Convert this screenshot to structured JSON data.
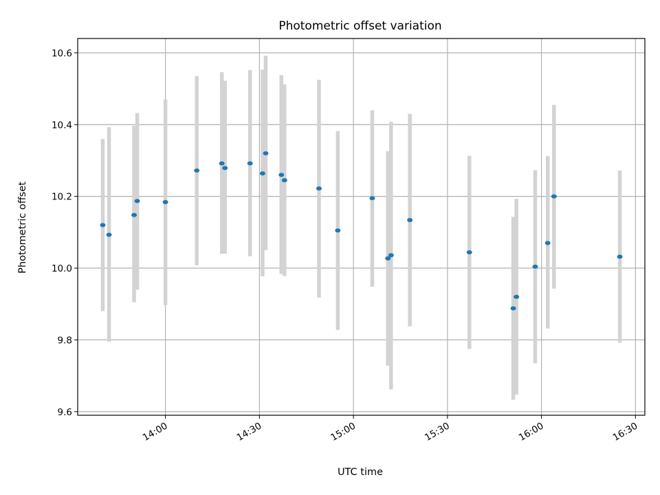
{
  "chart_data": {
    "type": "scatter",
    "title": "Photometric offset variation",
    "xlabel": "UTC time",
    "ylabel": "Photometric offset",
    "xlim": [
      "13:32",
      "16:33"
    ],
    "ylim": [
      9.59,
      10.64
    ],
    "grid": true,
    "x_ticks": [
      "14:00",
      "14:30",
      "15:00",
      "15:30",
      "16:00",
      "16:30"
    ],
    "y_ticks": [
      9.6,
      9.8,
      10.0,
      10.2,
      10.4,
      10.6
    ],
    "y_tick_labels": [
      "9.6",
      "9.8",
      "10.0",
      "10.2",
      "10.4",
      "10.6"
    ],
    "series": [
      {
        "marker_color": "#1f77b4",
        "errorbar_color": "#d3d3d3",
        "points": [
          {
            "x": "13:40",
            "y": 10.12,
            "ylow": 9.88,
            "yhigh": 10.36
          },
          {
            "x": "13:42",
            "y": 10.093,
            "ylow": 9.795,
            "yhigh": 10.393
          },
          {
            "x": "13:50",
            "y": 10.148,
            "ylow": 9.905,
            "yhigh": 10.397
          },
          {
            "x": "13:51",
            "y": 10.187,
            "ylow": 9.94,
            "yhigh": 10.432
          },
          {
            "x": "14:00",
            "y": 10.184,
            "ylow": 9.897,
            "yhigh": 10.47
          },
          {
            "x": "14:10",
            "y": 10.272,
            "ylow": 10.008,
            "yhigh": 10.535
          },
          {
            "x": "14:18",
            "y": 10.292,
            "ylow": 10.04,
            "yhigh": 10.546
          },
          {
            "x": "14:19",
            "y": 10.279,
            "ylow": 10.04,
            "yhigh": 10.522
          },
          {
            "x": "14:27",
            "y": 10.292,
            "ylow": 10.033,
            "yhigh": 10.552
          },
          {
            "x": "14:31",
            "y": 10.264,
            "ylow": 9.977,
            "yhigh": 10.553
          },
          {
            "x": "14:32",
            "y": 10.32,
            "ylow": 10.05,
            "yhigh": 10.592
          },
          {
            "x": "14:37",
            "y": 10.26,
            "ylow": 9.984,
            "yhigh": 10.538
          },
          {
            "x": "14:38",
            "y": 10.245,
            "ylow": 9.978,
            "yhigh": 10.512
          },
          {
            "x": "14:49",
            "y": 10.222,
            "ylow": 9.918,
            "yhigh": 10.525
          },
          {
            "x": "14:55",
            "y": 10.105,
            "ylow": 9.828,
            "yhigh": 10.382
          },
          {
            "x": "15:06",
            "y": 10.195,
            "ylow": 9.948,
            "yhigh": 10.44
          },
          {
            "x": "15:11",
            "y": 10.027,
            "ylow": 9.728,
            "yhigh": 10.326
          },
          {
            "x": "15:12",
            "y": 10.036,
            "ylow": 9.662,
            "yhigh": 10.408
          },
          {
            "x": "15:18",
            "y": 10.134,
            "ylow": 9.838,
            "yhigh": 10.43
          },
          {
            "x": "15:37",
            "y": 10.044,
            "ylow": 9.775,
            "yhigh": 10.313
          },
          {
            "x": "15:51",
            "y": 9.888,
            "ylow": 9.633,
            "yhigh": 10.143
          },
          {
            "x": "15:52",
            "y": 9.92,
            "ylow": 9.648,
            "yhigh": 10.193
          },
          {
            "x": "15:58",
            "y": 10.004,
            "ylow": 9.735,
            "yhigh": 10.273
          },
          {
            "x": "16:02",
            "y": 10.07,
            "ylow": 9.832,
            "yhigh": 10.312
          },
          {
            "x": "16:04",
            "y": 10.2,
            "ylow": 9.943,
            "yhigh": 10.455
          },
          {
            "x": "16:25",
            "y": 10.032,
            "ylow": 9.792,
            "yhigh": 10.272
          }
        ]
      }
    ]
  }
}
